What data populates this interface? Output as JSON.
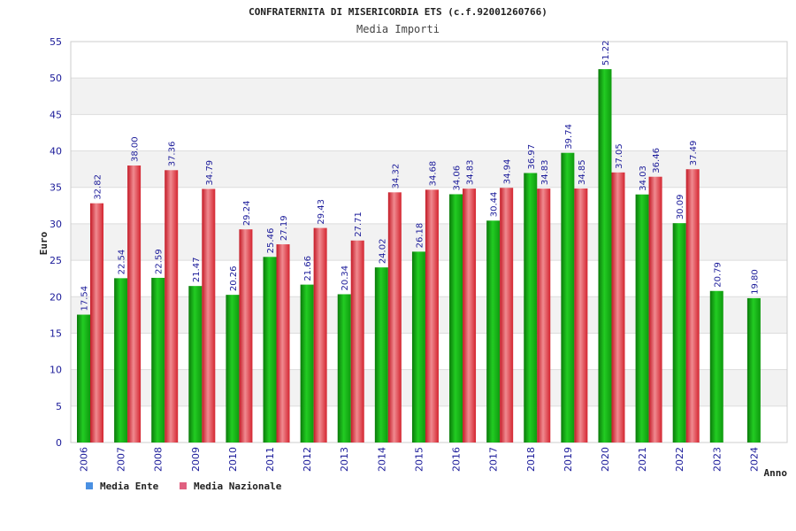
{
  "header": {
    "title": "CONFRATERNITA DI MISERICORDIA ETS (c.f.92001260766)",
    "subtitle": "Media Importi"
  },
  "colors": {
    "ente": "#18b418",
    "nazionale": "#e8303c",
    "legend_ente": "#4a90e2",
    "legend_nazionale": "#e06080",
    "band": "#f2f2f2",
    "tick_text": "#1a1a99"
  },
  "chart_data": {
    "type": "bar",
    "title": "CONFRATERNITA DI MISERICORDIA ETS (c.f.92001260766)",
    "subtitle": "Media Importi",
    "xlabel": "Anno",
    "ylabel": "Euro",
    "ylim": [
      0,
      55
    ],
    "yticks": [
      "0",
      "5",
      "10",
      "15",
      "20",
      "25",
      "30",
      "35",
      "40",
      "45",
      "50",
      "55"
    ],
    "grid": true,
    "legend_position": "bottom-left",
    "categories": [
      "2006",
      "2007",
      "2008",
      "2009",
      "2010",
      "2011",
      "2012",
      "2013",
      "2014",
      "2015",
      "2016",
      "2017",
      "2018",
      "2019",
      "2020",
      "2021",
      "2022",
      "2023",
      "2024"
    ],
    "series": [
      {
        "name": "Media Ente",
        "values": [
          17.54,
          22.54,
          22.59,
          21.47,
          20.26,
          25.46,
          21.66,
          20.34,
          24.02,
          26.18,
          34.06,
          30.44,
          36.97,
          39.74,
          51.22,
          34.03,
          30.09,
          20.79,
          19.8
        ],
        "labels": [
          "17.54",
          "22.54",
          "22.59",
          "21.47",
          "20.26",
          "25.46",
          "21.66",
          "20.34",
          "24.02",
          "26.18",
          "34.06",
          "30.44",
          "36.97",
          "39.74",
          "51.22",
          "34.03",
          "30.09",
          "20.79",
          "19.80"
        ]
      },
      {
        "name": "Media Nazionale",
        "values": [
          32.82,
          38.0,
          37.36,
          34.79,
          29.24,
          27.19,
          29.43,
          27.71,
          34.32,
          34.68,
          34.83,
          34.94,
          34.83,
          34.85,
          37.05,
          36.46,
          37.49,
          null,
          null
        ],
        "labels": [
          "32.82",
          "38.00",
          "37.36",
          "34.79",
          "29.24",
          "27.19",
          "29.43",
          "27.71",
          "34.32",
          "34.68",
          "34.83",
          "34.94",
          "34.83",
          "34.85",
          "37.05",
          "36.46",
          "37.49",
          null,
          null
        ]
      }
    ]
  }
}
